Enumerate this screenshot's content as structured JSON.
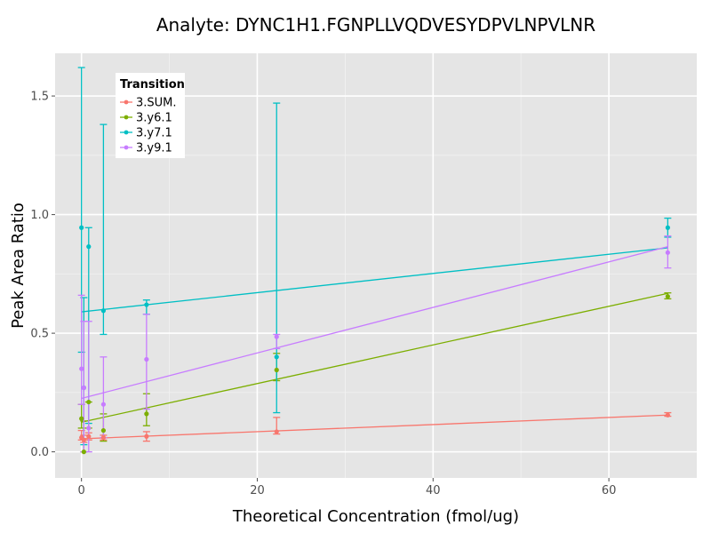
{
  "chart_data": {
    "type": "line",
    "title": "Analyte: DYNC1H1.FGNPLLVQDVESYDPVLNPVLNR",
    "xlabel": "Theoretical Concentration (fmol/ug)",
    "ylabel": "Peak Area Ratio",
    "xlim": [
      -3,
      70
    ],
    "ylim": [
      -0.11,
      1.68
    ],
    "x_ticks": [
      0,
      20,
      40,
      60
    ],
    "x_tick_labels": [
      "0",
      "20",
      "40",
      "60"
    ],
    "y_ticks": [
      0.0,
      0.5,
      1.0,
      1.5
    ],
    "y_tick_labels": [
      "0.0",
      "0.5",
      "1.0",
      "1.5"
    ],
    "grid": true,
    "legend": {
      "title": "Transition",
      "position": "top-left"
    },
    "series": [
      {
        "name": "3.SUM.",
        "color": "#F8766D",
        "points": [
          {
            "x": 0.0,
            "y": 0.06,
            "lo": 0.05,
            "hi": 0.09
          },
          {
            "x": 0.27,
            "y": 0.05,
            "lo": 0.04,
            "hi": 0.07
          },
          {
            "x": 0.82,
            "y": 0.065,
            "lo": 0.05,
            "hi": 0.08
          },
          {
            "x": 2.5,
            "y": 0.06,
            "lo": 0.05,
            "hi": 0.07
          },
          {
            "x": 7.4,
            "y": 0.065,
            "lo": 0.045,
            "hi": 0.085
          },
          {
            "x": 22.2,
            "y": 0.085,
            "lo": 0.075,
            "hi": 0.145
          },
          {
            "x": 66.7,
            "y": 0.155,
            "lo": 0.15,
            "hi": 0.165
          }
        ],
        "fit": {
          "x": [
            0.0,
            66.7
          ],
          "y": [
            0.055,
            0.155
          ]
        }
      },
      {
        "name": "3.y6.1",
        "color": "#7CAE00",
        "points": [
          {
            "x": 0.0,
            "y": 0.14,
            "lo": 0.1,
            "hi": 0.2
          },
          {
            "x": 0.27,
            "y": 0.0,
            "lo": 0.0,
            "hi": 0.13
          },
          {
            "x": 0.82,
            "y": 0.21,
            "lo": 0.1,
            "hi": 0.21
          },
          {
            "x": 2.5,
            "y": 0.09,
            "lo": 0.045,
            "hi": 0.16
          },
          {
            "x": 7.4,
            "y": 0.16,
            "lo": 0.11,
            "hi": 0.245
          },
          {
            "x": 22.2,
            "y": 0.345,
            "lo": 0.3,
            "hi": 0.415
          },
          {
            "x": 66.7,
            "y": 0.655,
            "lo": 0.645,
            "hi": 0.67
          }
        ],
        "fit": {
          "x": [
            0.0,
            66.7
          ],
          "y": [
            0.125,
            0.668
          ]
        }
      },
      {
        "name": "3.y7.1",
        "color": "#00BFC4",
        "points": [
          {
            "x": 0.0,
            "y": 0.945,
            "lo": 0.42,
            "hi": 1.62
          },
          {
            "x": 0.27,
            "y": 0.27,
            "lo": 0.03,
            "hi": 0.65
          },
          {
            "x": 0.82,
            "y": 0.865,
            "lo": 0.12,
            "hi": 0.945
          },
          {
            "x": 2.5,
            "y": 0.595,
            "lo": 0.495,
            "hi": 1.38
          },
          {
            "x": 7.4,
            "y": 0.62,
            "lo": 0.58,
            "hi": 0.64
          },
          {
            "x": 22.2,
            "y": 0.4,
            "lo": 0.165,
            "hi": 1.47
          },
          {
            "x": 66.7,
            "y": 0.945,
            "lo": 0.905,
            "hi": 0.985
          }
        ],
        "fit": {
          "x": [
            0.0,
            66.7
          ],
          "y": [
            0.59,
            0.86
          ]
        }
      },
      {
        "name": "3.y9.1",
        "color": "#C77CFF",
        "points": [
          {
            "x": 0.0,
            "y": 0.35,
            "lo": 0.2,
            "hi": 0.66
          },
          {
            "x": 0.27,
            "y": 0.27,
            "lo": 0.0,
            "hi": 0.55
          },
          {
            "x": 0.82,
            "y": 0.1,
            "lo": 0.0,
            "hi": 0.55
          },
          {
            "x": 2.5,
            "y": 0.2,
            "lo": 0.06,
            "hi": 0.4
          },
          {
            "x": 7.4,
            "y": 0.39,
            "lo": 0.18,
            "hi": 0.58
          },
          {
            "x": 22.2,
            "y": 0.485,
            "lo": 0.435,
            "hi": 0.495
          },
          {
            "x": 66.7,
            "y": 0.84,
            "lo": 0.775,
            "hi": 0.91
          }
        ],
        "fit": {
          "x": [
            0.0,
            66.7
          ],
          "y": [
            0.225,
            0.865
          ]
        }
      }
    ]
  }
}
